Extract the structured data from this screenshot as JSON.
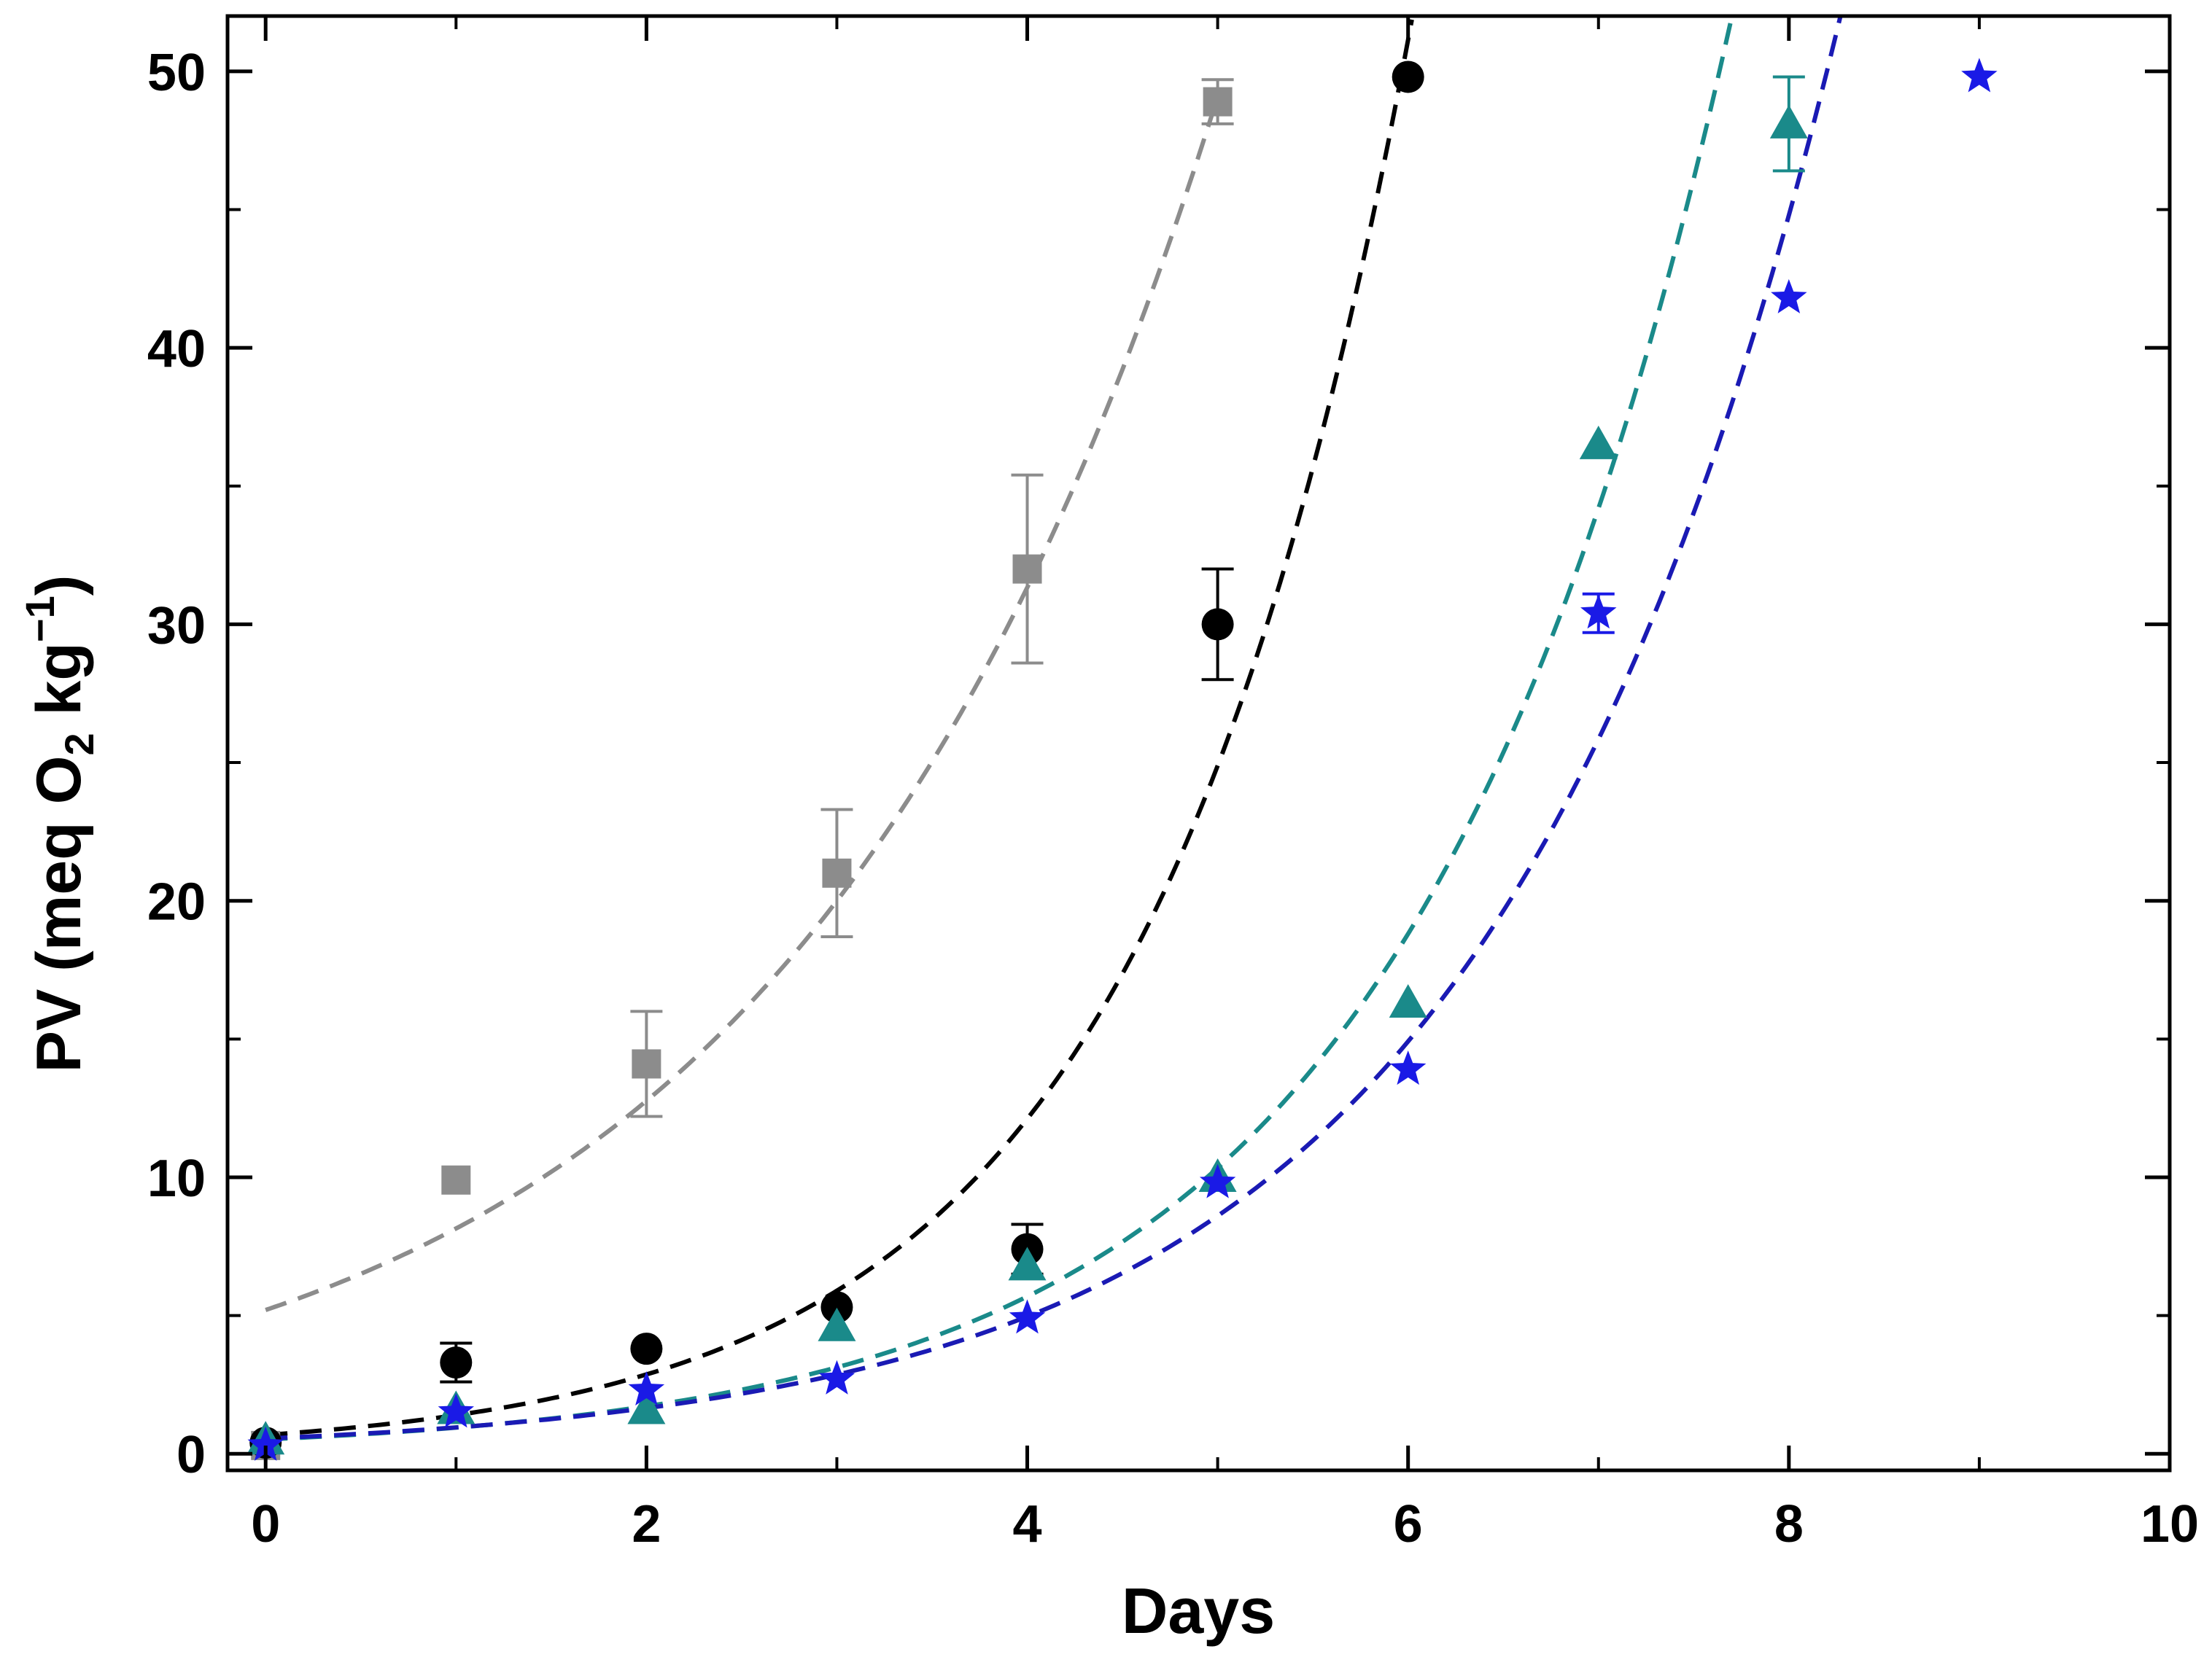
{
  "chart_data": {
    "type": "scatter",
    "title": "",
    "xlabel": "Days",
    "ylabel": {
      "prefix": "PV (meq O",
      "subscript": "2",
      "middle": " kg",
      "superscript": "−1",
      "suffix": ")"
    },
    "xlim": [
      -0.2,
      10
    ],
    "ylim": [
      -0.6,
      52
    ],
    "x_ticks": [
      0,
      2,
      4,
      6,
      8,
      10
    ],
    "y_ticks": [
      0,
      10,
      20,
      30,
      40,
      50
    ],
    "x_tick_labels": [
      "0",
      "2",
      "4",
      "6",
      "8",
      "10"
    ],
    "y_tick_labels": [
      "0",
      "10",
      "20",
      "30",
      "40",
      "50"
    ],
    "grid": false,
    "legend": "none",
    "series": [
      {
        "name": "gray squares",
        "marker": "square",
        "color": "#8c8c8c",
        "fit_color": "#8c8c8c",
        "x": [
          0,
          1,
          2,
          3,
          4,
          5
        ],
        "y": [
          0.3,
          9.9,
          14.1,
          21.0,
          32.0,
          48.9
        ],
        "err": [
          0,
          0,
          1.9,
          2.3,
          3.4,
          0.8
        ],
        "fit": {
          "a": 5.2,
          "b": 0.449,
          "x_range": [
            0,
            5
          ]
        }
      },
      {
        "name": "black circles",
        "marker": "circle",
        "color": "#000000",
        "fit_color": "#000000",
        "x": [
          0,
          1,
          2,
          3,
          4,
          5,
          6
        ],
        "y": [
          0.4,
          3.3,
          3.8,
          5.3,
          7.4,
          30.0,
          49.8
        ],
        "err": [
          0,
          0.7,
          0,
          0,
          0.9,
          2.0,
          0
        ],
        "fit": {
          "a": 0.68,
          "b": 0.72,
          "x_range": [
            0,
            6.02
          ]
        }
      },
      {
        "name": "teal triangles",
        "marker": "triangle",
        "color": "#1a8a8a",
        "fit_color": "#1a8a8a",
        "x": [
          0,
          1,
          2,
          3,
          4,
          5,
          6,
          7,
          8
        ],
        "y": [
          0.5,
          1.6,
          1.6,
          4.6,
          6.8,
          10.0,
          16.3,
          36.5,
          48.1
        ],
        "err": [
          0,
          0,
          0,
          0,
          0,
          0,
          0,
          0,
          1.7
        ],
        "fit": {
          "a": 0.52,
          "b": 0.598,
          "x_range": [
            0,
            7.85
          ]
        }
      },
      {
        "name": "blue stars",
        "marker": "star",
        "color": "#1a1ae6",
        "fit_color": "#1a1ab4",
        "x": [
          0,
          1,
          2,
          3,
          4,
          5,
          6,
          7,
          8,
          9
        ],
        "y": [
          0.3,
          1.5,
          2.3,
          2.7,
          4.9,
          9.8,
          13.9,
          30.4,
          41.8,
          49.8
        ],
        "err": [
          0,
          0,
          0,
          0,
          0,
          0,
          0,
          0.7,
          0,
          0
        ],
        "fit": {
          "a": 0.55,
          "b": 0.55,
          "x_range": [
            0,
            8.46
          ]
        }
      }
    ]
  }
}
